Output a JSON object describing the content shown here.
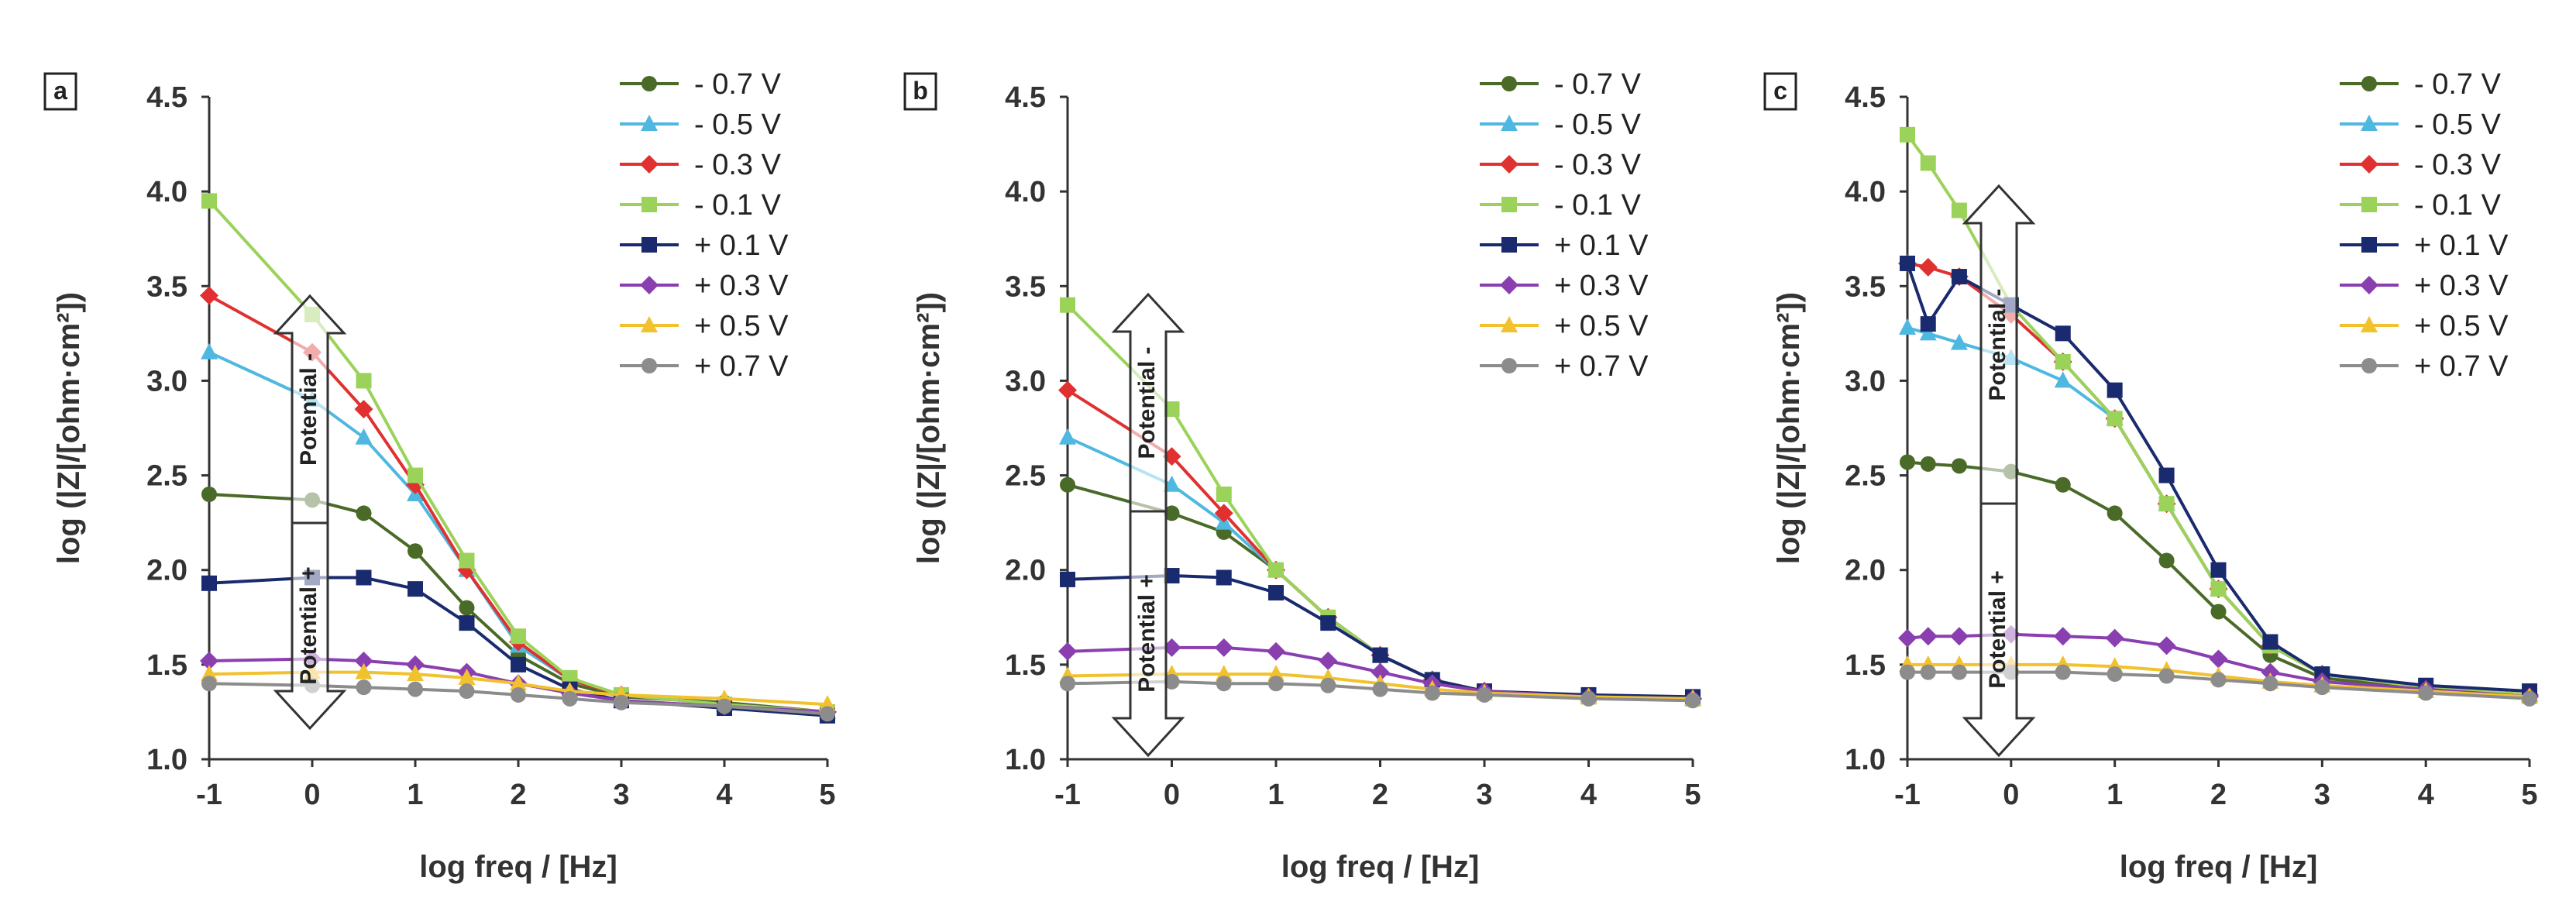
{
  "figure": {
    "panels": [
      "a",
      "b",
      "c"
    ],
    "arrow_label_up": "Potential -",
    "arrow_label_down": "Potential +"
  },
  "series_style": [
    {
      "name": "- 0.7 V",
      "color": "#4a6a28",
      "marker": "circle"
    },
    {
      "name": "- 0.5 V",
      "color": "#4fb8e0",
      "marker": "triangle"
    },
    {
      "name": "- 0.3 V",
      "color": "#e03030",
      "marker": "diamond"
    },
    {
      "name": "- 0.1 V",
      "color": "#9bd25a",
      "marker": "square"
    },
    {
      "name": "+ 0.1 V",
      "color": "#1a2a6e",
      "marker": "square"
    },
    {
      "name": "+ 0.3 V",
      "color": "#8a3fb0",
      "marker": "diamond"
    },
    {
      "name": "+ 0.5 V",
      "color": "#f2c12e",
      "marker": "triangle"
    },
    {
      "name": "+ 0.7 V",
      "color": "#8c8c8c",
      "marker": "circle"
    }
  ],
  "chart_data": [
    {
      "type": "line",
      "panel_label": "a",
      "xlabel": "log freq / [Hz]",
      "ylabel": "log (|Z|/[ohm·cm²])",
      "xlim": [
        -1,
        5
      ],
      "ylim": [
        1.0,
        4.5
      ],
      "xticks": [
        "-1",
        "0",
        "1",
        "2",
        "3",
        "4",
        "5"
      ],
      "yticks": [
        "1.0",
        "1.5",
        "2.0",
        "2.5",
        "3.0",
        "3.5",
        "4.0",
        "4.5"
      ],
      "legend": "top-right",
      "x": [
        -1,
        0,
        0.5,
        1,
        1.5,
        2,
        2.5,
        3,
        4,
        5
      ],
      "series": [
        {
          "name": "- 0.7 V",
          "values": [
            2.4,
            2.37,
            2.3,
            2.1,
            1.8,
            1.55,
            1.4,
            1.33,
            1.3,
            1.25
          ]
        },
        {
          "name": "- 0.5 V",
          "values": [
            3.15,
            2.9,
            2.7,
            2.4,
            2.0,
            1.6,
            1.42,
            1.34,
            1.29,
            1.25
          ]
        },
        {
          "name": "- 0.3 V",
          "values": [
            3.45,
            3.15,
            2.85,
            2.45,
            2.0,
            1.62,
            1.42,
            1.34,
            1.29,
            1.25
          ]
        },
        {
          "name": "- 0.1 V",
          "values": [
            3.95,
            3.35,
            3.0,
            2.5,
            2.05,
            1.65,
            1.43,
            1.34,
            1.29,
            1.25
          ]
        },
        {
          "name": "+ 0.1 V",
          "values": [
            1.93,
            1.96,
            1.96,
            1.9,
            1.72,
            1.5,
            1.37,
            1.31,
            1.27,
            1.23
          ]
        },
        {
          "name": "+ 0.3 V",
          "values": [
            1.52,
            1.53,
            1.52,
            1.5,
            1.46,
            1.4,
            1.35,
            1.31,
            1.28,
            1.25
          ]
        },
        {
          "name": "+ 0.5 V",
          "values": [
            1.45,
            1.46,
            1.46,
            1.45,
            1.43,
            1.4,
            1.36,
            1.34,
            1.32,
            1.29
          ]
        },
        {
          "name": "+ 0.7 V",
          "values": [
            1.4,
            1.39,
            1.38,
            1.37,
            1.36,
            1.34,
            1.32,
            1.3,
            1.28,
            1.24
          ]
        }
      ]
    },
    {
      "type": "line",
      "panel_label": "b",
      "xlabel": "log freq / [Hz]",
      "ylabel": "log (|Z|/[ohm·cm²])",
      "xlim": [
        -1,
        5
      ],
      "ylim": [
        1.0,
        4.5
      ],
      "xticks": [
        "-1",
        "0",
        "1",
        "2",
        "3",
        "4",
        "5"
      ],
      "yticks": [
        "1.0",
        "1.5",
        "2.0",
        "2.5",
        "3.0",
        "3.5",
        "4.0",
        "4.5"
      ],
      "legend": "top-right",
      "x": [
        -1,
        0,
        0.5,
        1,
        1.5,
        2,
        2.5,
        3,
        4,
        5
      ],
      "series": [
        {
          "name": "- 0.7 V",
          "values": [
            2.45,
            2.3,
            2.2,
            2.0,
            1.75,
            1.55,
            1.42,
            1.36,
            1.33,
            1.32
          ]
        },
        {
          "name": "- 0.5 V",
          "values": [
            2.7,
            2.45,
            2.25,
            2.0,
            1.75,
            1.55,
            1.42,
            1.36,
            1.33,
            1.32
          ]
        },
        {
          "name": "- 0.3 V",
          "values": [
            2.95,
            2.6,
            2.3,
            2.0,
            1.75,
            1.55,
            1.42,
            1.36,
            1.33,
            1.32
          ]
        },
        {
          "name": "- 0.1 V",
          "values": [
            3.4,
            2.85,
            2.4,
            2.0,
            1.75,
            1.55,
            1.42,
            1.36,
            1.33,
            1.32
          ]
        },
        {
          "name": "+ 0.1 V",
          "values": [
            1.95,
            1.97,
            1.96,
            1.88,
            1.72,
            1.55,
            1.42,
            1.36,
            1.34,
            1.33
          ]
        },
        {
          "name": "+ 0.3 V",
          "values": [
            1.57,
            1.59,
            1.59,
            1.57,
            1.52,
            1.46,
            1.4,
            1.36,
            1.33,
            1.32
          ]
        },
        {
          "name": "+ 0.5 V",
          "values": [
            1.44,
            1.45,
            1.45,
            1.45,
            1.43,
            1.4,
            1.37,
            1.35,
            1.33,
            1.32
          ]
        },
        {
          "name": "+ 0.7 V",
          "values": [
            1.4,
            1.41,
            1.4,
            1.4,
            1.39,
            1.37,
            1.35,
            1.34,
            1.32,
            1.31
          ]
        }
      ]
    },
    {
      "type": "line",
      "panel_label": "c",
      "xlabel": "log freq / [Hz]",
      "ylabel": "log (|Z|/[ohm·cm²])",
      "xlim": [
        -1,
        5
      ],
      "ylim": [
        1.0,
        4.5
      ],
      "xticks": [
        "-1",
        "0",
        "1",
        "2",
        "3",
        "4",
        "5"
      ],
      "yticks": [
        "1.0",
        "1.5",
        "2.0",
        "2.5",
        "3.0",
        "3.5",
        "4.0",
        "4.5"
      ],
      "legend": "top-right",
      "x": [
        -1,
        -0.8,
        -0.5,
        0,
        0.5,
        1,
        1.5,
        2,
        2.5,
        3,
        4,
        5
      ],
      "series": [
        {
          "name": "- 0.7 V",
          "values": [
            2.57,
            2.56,
            2.55,
            2.52,
            2.45,
            2.3,
            2.05,
            1.78,
            1.55,
            1.43,
            1.37,
            1.33
          ]
        },
        {
          "name": "- 0.5 V",
          "values": [
            3.28,
            3.25,
            3.2,
            3.12,
            3.0,
            2.8,
            2.35,
            1.9,
            1.6,
            1.45,
            1.38,
            1.34
          ]
        },
        {
          "name": "- 0.3 V",
          "values": [
            3.62,
            3.6,
            3.55,
            3.35,
            3.1,
            2.8,
            2.35,
            1.9,
            1.6,
            1.45,
            1.38,
            1.34
          ]
        },
        {
          "name": "- 0.1 V",
          "values": [
            4.3,
            4.15,
            3.9,
            3.4,
            3.1,
            2.8,
            2.35,
            1.9,
            1.6,
            1.45,
            1.38,
            1.34
          ]
        },
        {
          "name": "+ 0.1 V",
          "values": [
            3.62,
            3.3,
            3.55,
            3.4,
            3.25,
            2.95,
            2.5,
            2.0,
            1.62,
            1.45,
            1.39,
            1.36
          ]
        },
        {
          "name": "+ 0.3 V",
          "values": [
            1.64,
            1.65,
            1.65,
            1.66,
            1.65,
            1.64,
            1.6,
            1.53,
            1.46,
            1.41,
            1.37,
            1.33
          ]
        },
        {
          "name": "+ 0.5 V",
          "values": [
            1.5,
            1.5,
            1.5,
            1.5,
            1.5,
            1.49,
            1.47,
            1.44,
            1.41,
            1.39,
            1.36,
            1.33
          ]
        },
        {
          "name": "+ 0.7 V",
          "values": [
            1.46,
            1.46,
            1.46,
            1.46,
            1.46,
            1.45,
            1.44,
            1.42,
            1.4,
            1.38,
            1.35,
            1.32
          ]
        }
      ]
    }
  ]
}
